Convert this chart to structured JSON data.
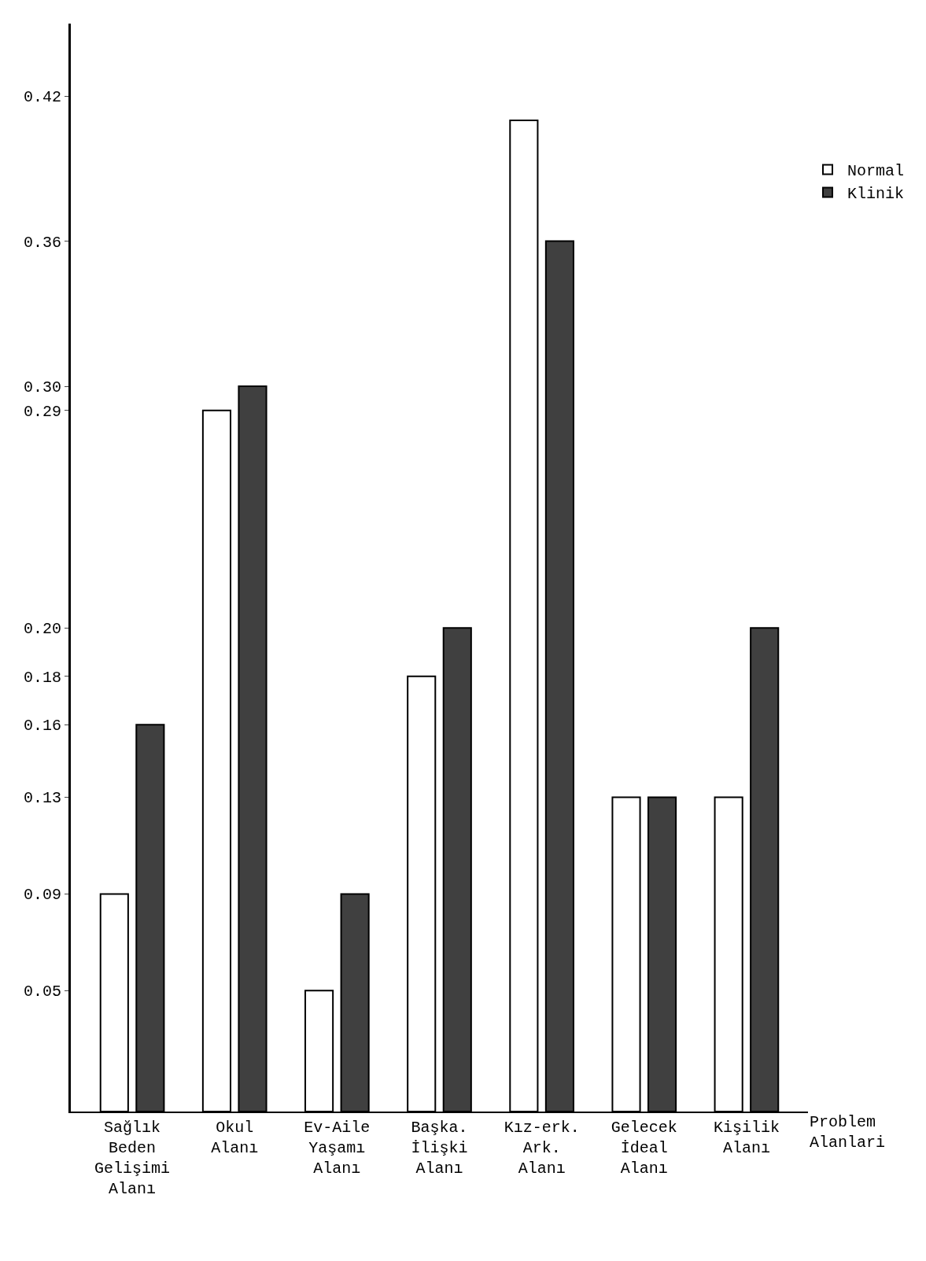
{
  "chart_data": {
    "type": "bar",
    "xlabel": "Problem\nAlanlari",
    "categories": [
      "Sağlık\nBeden\nGelişimi\nAlanı",
      "Okul\nAlanı",
      "Ev-Aile\nYaşamı\nAlanı",
      "Başka.\nİlişki\nAlanı",
      "Kız-erk.\nArk.\nAlanı",
      "Gelecek\nİdeal\nAlanı",
      "Kişilik\nAlanı"
    ],
    "series": [
      {
        "name": "Normal",
        "color": "#ffffff",
        "values": [
          0.09,
          0.29,
          0.05,
          0.18,
          0.41,
          0.13,
          0.13
        ]
      },
      {
        "name": "Klinik",
        "color": "#404040",
        "values": [
          0.16,
          0.3,
          0.09,
          0.2,
          0.36,
          0.13,
          0.2
        ]
      }
    ],
    "ylim": [
      0,
      0.45
    ],
    "yticks": [
      0.05,
      0.09,
      0.13,
      0.16,
      0.18,
      {
        "value": 0.2,
        "label": "0.20"
      },
      0.29,
      {
        "value": 0.3,
        "label": "0.30"
      },
      0.36,
      0.42
    ],
    "legend": "top right"
  }
}
